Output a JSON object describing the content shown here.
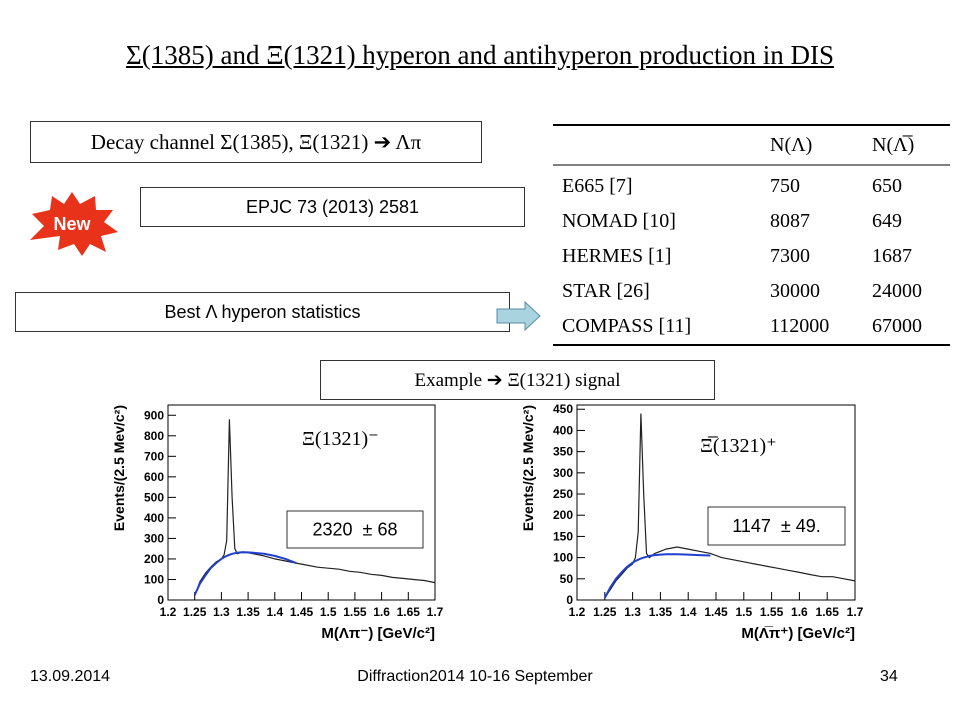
{
  "title": "Σ(1385) and Ξ(1321) hyperon and antihyperon production in DIS",
  "decay_box": "Decay channel Σ(1385), Ξ(1321) ➔ Λπ",
  "badge": "New",
  "reference_box": "EPJC 73 (2013) 2581",
  "statistics_box": "Best Λ hyperon statistics",
  "example_box": "Example ➔ Ξ(1321) signal",
  "table": {
    "columns": [
      "N(Λ)",
      "N(Λ̅)"
    ],
    "rows": [
      [
        "E665 [7]",
        750,
        650
      ],
      [
        "NOMAD [10]",
        8087,
        649
      ],
      [
        "HERMES [1]",
        7300,
        1687
      ],
      [
        "STAR [26]",
        30000,
        24000
      ],
      [
        "COMPASS [11]",
        112000,
        67000
      ]
    ]
  },
  "chart_data": [
    {
      "type": "line",
      "annotation": "Ξ(1321)⁻",
      "result": "2320  ± 68",
      "x_label": "M(Λπ⁻) [GeV/c²]",
      "y_label": "Events/(2.5 Mev/c²)",
      "x": [
        1.25,
        1.26,
        1.27,
        1.28,
        1.29,
        1.3,
        1.305,
        1.31,
        1.315,
        1.32,
        1.325,
        1.33,
        1.335,
        1.34,
        1.35,
        1.36,
        1.38,
        1.4,
        1.42,
        1.44,
        1.46,
        1.48,
        1.5,
        1.52,
        1.54,
        1.56,
        1.58,
        1.6,
        1.62,
        1.64,
        1.66,
        1.68,
        1.7
      ],
      "series": [
        {
          "color": "#222222",
          "values": [
            20,
            90,
            130,
            160,
            185,
            200,
            220,
            290,
            880,
            500,
            250,
            225,
            230,
            235,
            230,
            225,
            215,
            200,
            190,
            180,
            170,
            160,
            155,
            150,
            140,
            135,
            125,
            120,
            110,
            105,
            100,
            95,
            85
          ]
        },
        {
          "color": "#1f3fd0",
          "values": [
            25,
            80,
            120,
            155,
            180,
            200,
            208,
            215,
            220,
            225,
            228,
            230,
            232,
            233,
            232,
            230,
            225,
            215,
            200,
            180,
            null,
            null,
            null,
            null,
            null,
            null,
            null,
            null,
            null,
            null,
            null,
            null,
            null
          ]
        }
      ],
      "xlim": [
        1.2,
        1.7
      ],
      "xticks": [
        1.2,
        1.25,
        1.3,
        1.35,
        1.4,
        1.45,
        1.5,
        1.55,
        1.6,
        1.65,
        1.7
      ],
      "ylim": [
        0,
        950
      ],
      "yticks": [
        0,
        100,
        200,
        300,
        400,
        500,
        600,
        700,
        800,
        900
      ]
    },
    {
      "type": "line",
      "annotation": "Ξ̅(1321)⁺",
      "result": "1147  ± 49.",
      "x_label": "M(Λ̅π⁺) [GeV/c²]",
      "y_label": "Events/(2.5 Mev/c²)",
      "x": [
        1.25,
        1.26,
        1.27,
        1.28,
        1.29,
        1.3,
        1.305,
        1.31,
        1.315,
        1.32,
        1.325,
        1.33,
        1.335,
        1.34,
        1.35,
        1.36,
        1.38,
        1.4,
        1.42,
        1.44,
        1.46,
        1.48,
        1.5,
        1.52,
        1.54,
        1.56,
        1.58,
        1.6,
        1.62,
        1.64,
        1.66,
        1.68,
        1.7
      ],
      "series": [
        {
          "color": "#222222",
          "values": [
            5,
            25,
            45,
            60,
            75,
            85,
            100,
            160,
            440,
            250,
            110,
            100,
            105,
            110,
            115,
            120,
            125,
            120,
            115,
            110,
            100,
            95,
            90,
            85,
            80,
            75,
            70,
            65,
            60,
            55,
            55,
            50,
            45
          ]
        },
        {
          "color": "#1f3fd0",
          "values": [
            5,
            30,
            50,
            65,
            78,
            88,
            92,
            95,
            98,
            100,
            102,
            104,
            105,
            106,
            107,
            108,
            108,
            107,
            106,
            105,
            null,
            null,
            null,
            null,
            null,
            null,
            null,
            null,
            null,
            null,
            null,
            null,
            null
          ]
        }
      ],
      "xlim": [
        1.2,
        1.7
      ],
      "xticks": [
        1.2,
        1.25,
        1.3,
        1.35,
        1.4,
        1.45,
        1.5,
        1.55,
        1.6,
        1.65,
        1.7
      ],
      "ylim": [
        0,
        460
      ],
      "yticks": [
        0,
        50,
        100,
        150,
        200,
        250,
        300,
        350,
        400,
        450
      ]
    }
  ],
  "footer": {
    "date": "13.09.2014",
    "event": "Diffraction2014 10-16 September",
    "page": "34"
  }
}
